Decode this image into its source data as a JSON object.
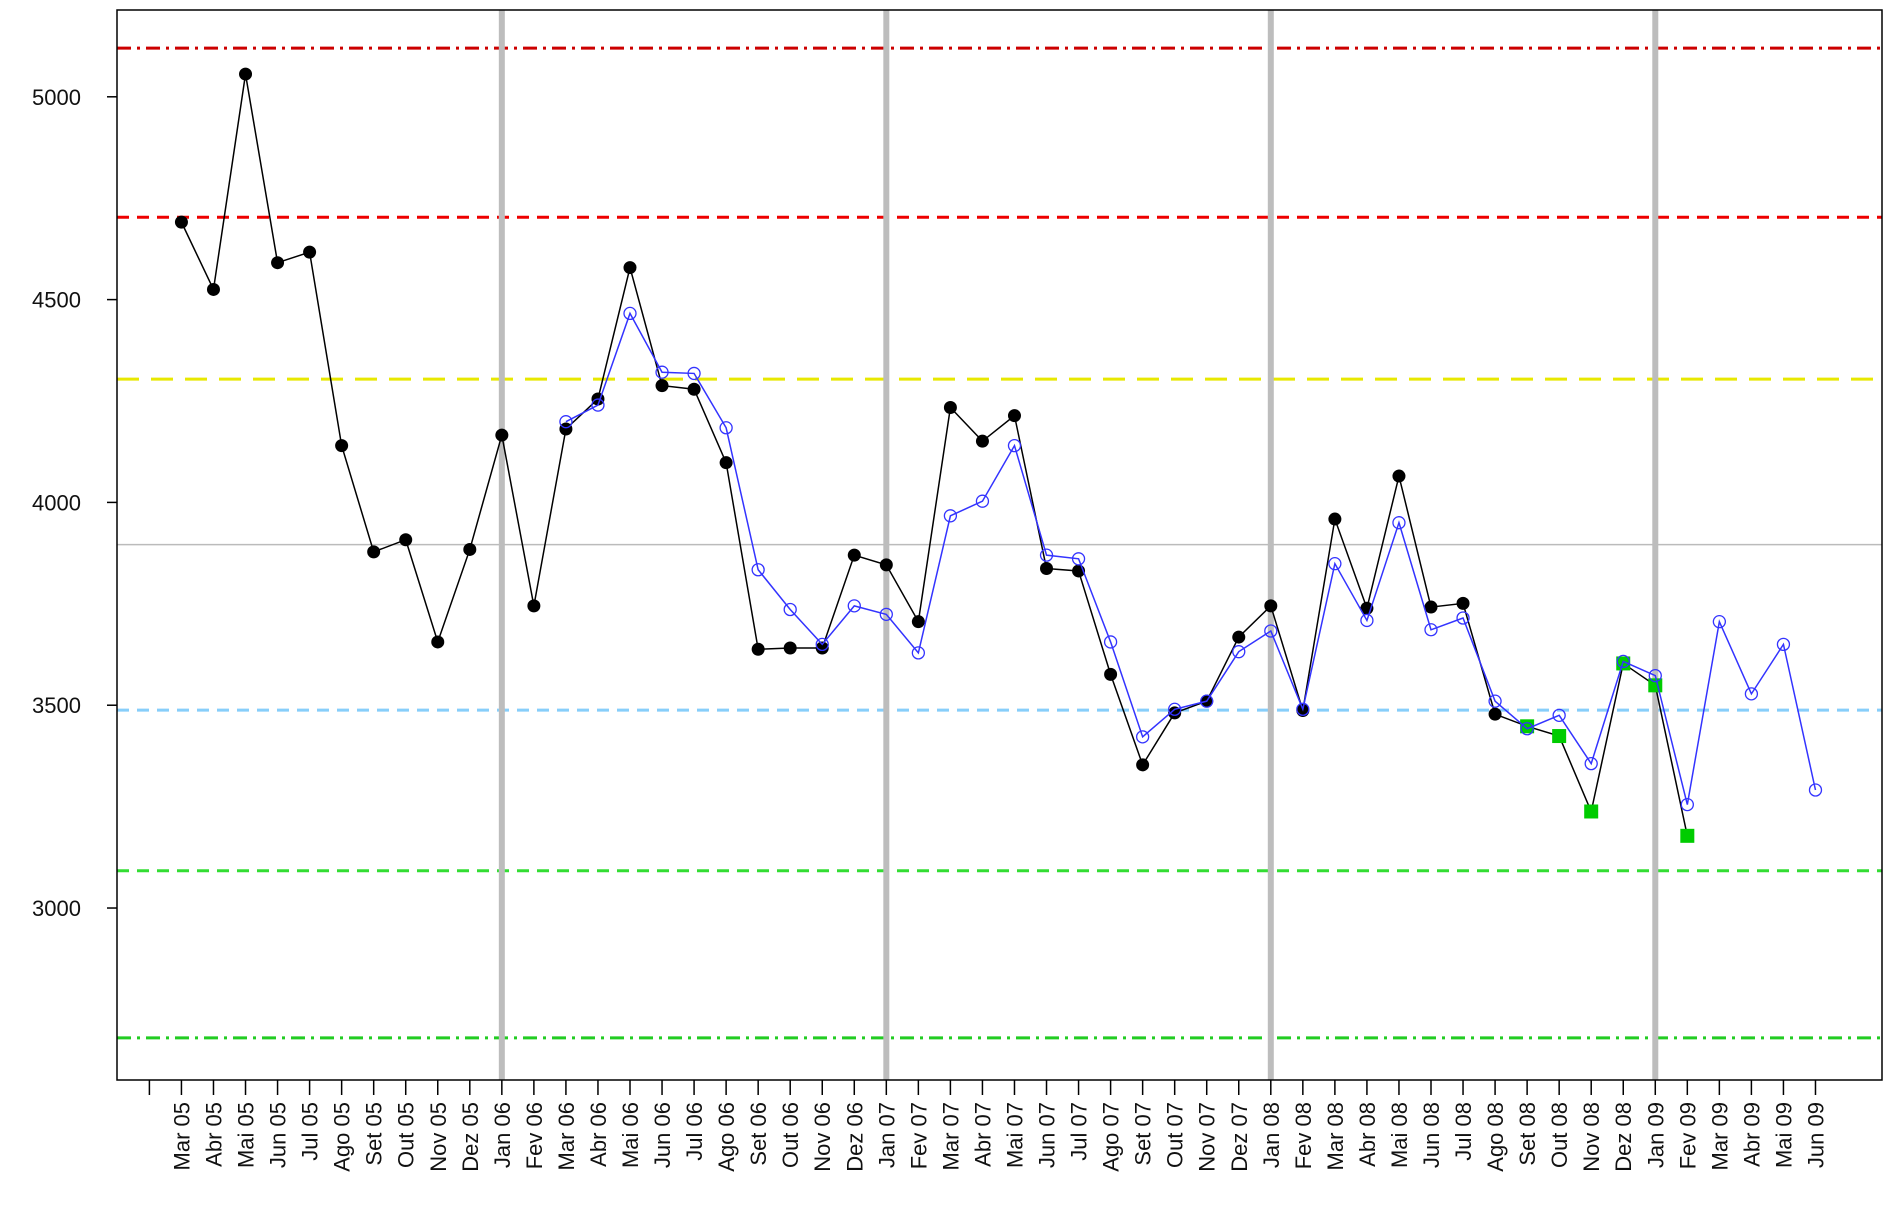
{
  "chart_data": {
    "type": "line",
    "categories": [
      null,
      "Mar 05",
      "Abr 05",
      "Mai 05",
      "Jun 05",
      "Jul 05",
      "Ago 05",
      "Set 05",
      "Out 05",
      "Nov 05",
      "Dez 05",
      "Jan 06",
      "Fev 06",
      "Mar 06",
      "Abr 06",
      "Mai 06",
      "Jun 06",
      "Jul 06",
      "Ago 06",
      "Set 06",
      "Out 06",
      "Nov 06",
      "Dez 06",
      "Jan 07",
      "Fev 07",
      "Mar 07",
      "Abr 07",
      "Mai 07",
      "Jun 07",
      "Jul 07",
      "Ago 07",
      "Set 07",
      "Out 07",
      "Nov 07",
      "Dez 07",
      "Jan 08",
      "Fev 08",
      "Mar 08",
      "Abr 08",
      "Mai 08",
      "Jun 08",
      "Jul 08",
      "Ago 08",
      "Set 08",
      "Out 08",
      "Nov 08",
      "Dez 08",
      "Jan 09",
      "Fev 09",
      "Mar 09",
      "Abr 09",
      "Mai 09",
      "Jun 09"
    ],
    "series": [
      {
        "color": "#000000",
        "marker": "filled-circle",
        "values": [
          null,
          4691,
          4525,
          5056,
          4591,
          4617,
          4140,
          3878,
          3908,
          3656,
          3884,
          4166,
          3745,
          4181,
          4255,
          4579,
          4288,
          4279,
          4098,
          3638,
          3641,
          3641,
          3870,
          3846,
          3706,
          4234,
          4151,
          4214,
          3837,
          3831,
          3576,
          3353,
          3481,
          3510,
          3668,
          3745,
          3487,
          3959,
          3739,
          4065,
          3742,
          3751,
          3478,
          3448,
          3424,
          3238,
          3603,
          3549,
          3178,
          null,
          null,
          null,
          null
        ],
        "marker_styles": [
          null,
          "circle",
          "circle",
          "circle",
          "circle",
          "circle",
          "circle",
          "circle",
          "circle",
          "circle",
          "circle",
          "circle",
          "circle",
          "circle",
          "circle",
          "circle",
          "circle",
          "circle",
          "circle",
          "circle",
          "circle",
          "circle",
          "circle",
          "circle",
          "circle",
          "circle",
          "circle",
          "circle",
          "circle",
          "circle",
          "circle",
          "circle",
          "circle",
          "circle",
          "circle",
          "circle",
          "circle",
          "circle",
          "circle",
          "circle",
          "circle",
          "circle",
          "circle",
          "square",
          "square",
          "square",
          "square",
          "square",
          "square",
          null,
          null,
          null,
          null
        ],
        "square_color": "#00cc00"
      },
      {
        "color": "#3333ff",
        "marker": "open-circle",
        "values": [
          null,
          null,
          null,
          null,
          null,
          null,
          null,
          null,
          null,
          null,
          null,
          null,
          null,
          4199,
          4240,
          4466,
          4321,
          4318,
          4184,
          3834,
          3736,
          3650,
          3745,
          3724,
          3629,
          3967,
          4003,
          4140,
          3870,
          3861,
          3656,
          3422,
          3490,
          3510,
          3632,
          3683,
          3490,
          3849,
          3709,
          3950,
          3686,
          3715,
          3510,
          3442,
          3475,
          3356,
          3608,
          3573,
          3255,
          3706,
          3528,
          3650,
          3291
        ]
      }
    ],
    "ylim": [
      2576,
      5214
    ],
    "yticks": [
      3000,
      3500,
      4000,
      4500,
      5000
    ],
    "reference_lines": [
      {
        "value": 5120,
        "color": "#cc0000",
        "style": "dashdot"
      },
      {
        "value": 4703,
        "color": "#ee0000",
        "style": "dashed"
      },
      {
        "value": 4304,
        "color": "#e8e800",
        "style": "longdash"
      },
      {
        "value": 3896,
        "color": "#bbbbbb",
        "style": "solid"
      },
      {
        "value": 3488,
        "color": "#87cefa",
        "style": "dashed"
      },
      {
        "value": 3092,
        "color": "#33dd33",
        "style": "dashed"
      },
      {
        "value": 2680,
        "color": "#22cc22",
        "style": "dashdot"
      }
    ],
    "vline_categories": [
      "Jan 06",
      "Jan 07",
      "Jan 08",
      "Jan 09"
    ],
    "vline_color": "#bdbdbd"
  }
}
